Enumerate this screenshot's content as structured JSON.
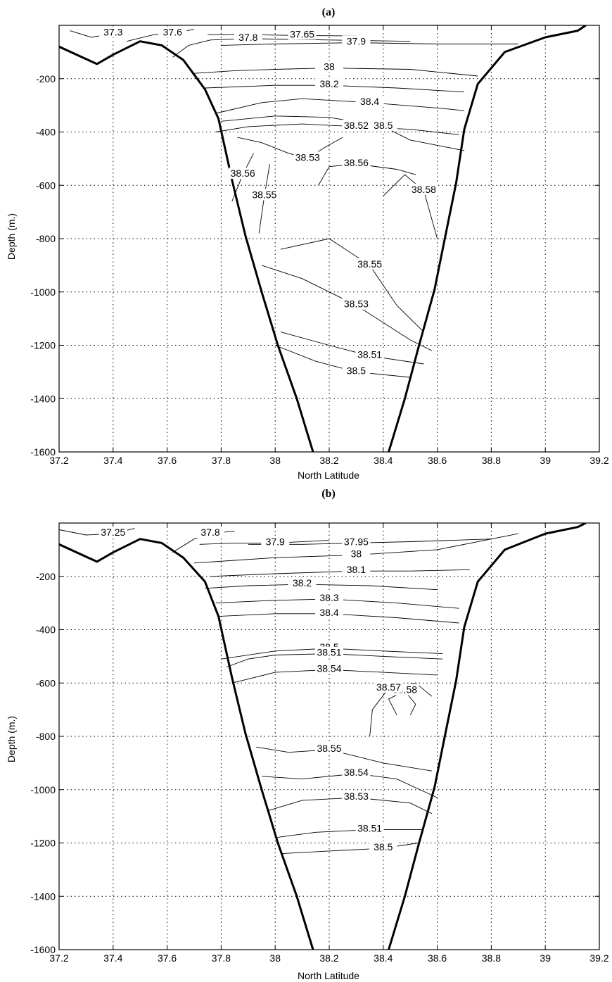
{
  "chart_data": [
    {
      "type": "contour",
      "title": "(a)",
      "xlabel": "North Latitude",
      "ylabel": "Depth (m.)",
      "xlim": [
        37.2,
        39.2
      ],
      "ylim": [
        -1600,
        0
      ],
      "xticks": [
        "37.2",
        "37.4",
        "37.6",
        "37.8",
        "38",
        "38.2",
        "38.4",
        "38.6",
        "38.8",
        "39",
        "39.2"
      ],
      "yticks": [
        "-200",
        "-400",
        "-600",
        "-800",
        "-1000",
        "-1200",
        "-1400",
        "-1600"
      ],
      "grid": true,
      "bathymetry": [
        [
          37.2,
          -80
        ],
        [
          37.34,
          -145
        ],
        [
          37.4,
          -110
        ],
        [
          37.5,
          -60
        ],
        [
          37.58,
          -75
        ],
        [
          37.66,
          -130
        ],
        [
          37.74,
          -240
        ],
        [
          37.79,
          -350
        ],
        [
          37.84,
          -580
        ],
        [
          37.89,
          -790
        ],
        [
          37.95,
          -1000
        ],
        [
          38.01,
          -1200
        ],
        [
          38.08,
          -1400
        ],
        [
          38.14,
          -1600
        ]
      ],
      "bathymetry_right": [
        [
          38.42,
          -1600
        ],
        [
          38.48,
          -1400
        ],
        [
          38.53,
          -1210
        ],
        [
          38.59,
          -990
        ],
        [
          38.63,
          -790
        ],
        [
          38.67,
          -590
        ],
        [
          38.7,
          -390
        ],
        [
          38.75,
          -220
        ],
        [
          38.85,
          -100
        ],
        [
          39.0,
          -45
        ],
        [
          39.12,
          -20
        ],
        [
          39.15,
          0
        ]
      ],
      "contours": [
        {
          "label": "37.3",
          "points": [
            [
              37.24,
              -20
            ],
            [
              37.32,
              -45
            ],
            [
              37.4,
              -30
            ],
            [
              37.45,
              -10
            ]
          ]
        },
        {
          "label": "37.6",
          "points": [
            [
              37.45,
              -60
            ],
            [
              37.55,
              -35
            ],
            [
              37.62,
              -30
            ],
            [
              37.7,
              -15
            ]
          ]
        },
        {
          "label": "37.65",
          "points": [
            [
              37.75,
              -35
            ],
            [
              37.9,
              -35
            ],
            [
              38.1,
              -38
            ],
            [
              38.3,
              -40
            ]
          ]
        },
        {
          "label": "37.8",
          "points": [
            [
              37.62,
              -120
            ],
            [
              37.68,
              -75
            ],
            [
              37.76,
              -55
            ],
            [
              37.9,
              -50
            ],
            [
              38.2,
              -55
            ],
            [
              38.5,
              -60
            ]
          ]
        },
        {
          "label": "37.9",
          "points": [
            [
              37.8,
              -75
            ],
            [
              38.0,
              -70
            ],
            [
              38.3,
              -65
            ],
            [
              38.6,
              -70
            ],
            [
              38.9,
              -70
            ]
          ]
        },
        {
          "label": "38",
          "points": [
            [
              37.7,
              -180
            ],
            [
              37.85,
              -170
            ],
            [
              38.0,
              -165
            ],
            [
              38.2,
              -160
            ],
            [
              38.5,
              -165
            ],
            [
              38.75,
              -190
            ]
          ]
        },
        {
          "label": "38.2",
          "points": [
            [
              37.74,
              -235
            ],
            [
              38.0,
              -225
            ],
            [
              38.2,
              -225
            ],
            [
              38.45,
              -235
            ],
            [
              38.7,
              -250
            ]
          ]
        },
        {
          "label": "38.4",
          "points": [
            [
              37.78,
              -330
            ],
            [
              37.95,
              -290
            ],
            [
              38.1,
              -275
            ],
            [
              38.35,
              -290
            ],
            [
              38.6,
              -310
            ],
            [
              38.7,
              -320
            ]
          ]
        },
        {
          "label": "38.52",
          "points": [
            [
              37.78,
              -400
            ],
            [
              37.9,
              -380
            ],
            [
              38.1,
              -370
            ],
            [
              38.3,
              -380
            ],
            [
              38.5,
              -390
            ],
            [
              38.68,
              -410
            ]
          ]
        },
        {
          "label": "38.5",
          "points": [
            [
              37.8,
              -360
            ],
            [
              38.0,
              -340
            ],
            [
              38.2,
              -345
            ],
            [
              38.4,
              -380
            ],
            [
              38.5,
              -430
            ],
            [
              38.7,
              -470
            ]
          ]
        },
        {
          "label": "38.53",
          "points": [
            [
              37.86,
              -420
            ],
            [
              37.95,
              -440
            ],
            [
              38.05,
              -480
            ],
            [
              38.12,
              -500
            ],
            [
              38.18,
              -460
            ],
            [
              38.25,
              -420
            ]
          ]
        },
        {
          "label": "38.56",
          "points": [
            [
              37.92,
              -480
            ],
            [
              37.88,
              -560
            ],
            [
              37.84,
              -660
            ]
          ]
        },
        {
          "label": "38.55",
          "points": [
            [
              37.98,
              -520
            ],
            [
              37.96,
              -640
            ],
            [
              37.94,
              -780
            ]
          ]
        },
        {
          "label": "38.56",
          "points": [
            [
              38.16,
              -600
            ],
            [
              38.2,
              -530
            ],
            [
              38.3,
              -520
            ],
            [
              38.45,
              -540
            ],
            [
              38.52,
              -560
            ]
          ]
        },
        {
          "label": "38.58",
          "points": [
            [
              38.4,
              -640
            ],
            [
              38.48,
              -560
            ],
            [
              38.55,
              -620
            ],
            [
              38.6,
              -800
            ]
          ]
        },
        {
          "label": "38.55",
          "points": [
            [
              38.02,
              -840
            ],
            [
              38.2,
              -800
            ],
            [
              38.35,
              -900
            ],
            [
              38.45,
              -1050
            ],
            [
              38.55,
              -1150
            ]
          ]
        },
        {
          "label": "38.53",
          "points": [
            [
              37.95,
              -900
            ],
            [
              38.1,
              -950
            ],
            [
              38.3,
              -1050
            ],
            [
              38.5,
              -1180
            ],
            [
              38.58,
              -1220
            ]
          ]
        },
        {
          "label": "38.5",
          "points": [
            [
              38.0,
              -1200
            ],
            [
              38.15,
              -1260
            ],
            [
              38.3,
              -1300
            ],
            [
              38.5,
              -1320
            ]
          ]
        },
        {
          "label": "38.51",
          "points": [
            [
              38.02,
              -1150
            ],
            [
              38.2,
              -1200
            ],
            [
              38.35,
              -1240
            ],
            [
              38.55,
              -1270
            ]
          ]
        }
      ]
    },
    {
      "type": "contour",
      "title": "(b)",
      "xlabel": "North Latitude",
      "ylabel": "Depth (m.)",
      "xlim": [
        37.2,
        39.2
      ],
      "ylim": [
        -1600,
        0
      ],
      "xticks": [
        "37.2",
        "37.4",
        "37.6",
        "37.8",
        "38",
        "38.2",
        "38.4",
        "38.6",
        "38.8",
        "39",
        "39.2"
      ],
      "yticks": [
        "-200",
        "-400",
        "-600",
        "-800",
        "-1000",
        "-1200",
        "-1400",
        "-1600"
      ],
      "grid": true,
      "bathymetry": [
        [
          37.2,
          -80
        ],
        [
          37.34,
          -145
        ],
        [
          37.4,
          -110
        ],
        [
          37.5,
          -60
        ],
        [
          37.58,
          -75
        ],
        [
          37.66,
          -130
        ],
        [
          37.74,
          -220
        ],
        [
          37.79,
          -350
        ],
        [
          37.84,
          -580
        ],
        [
          37.89,
          -790
        ],
        [
          37.95,
          -1000
        ],
        [
          38.01,
          -1200
        ],
        [
          38.08,
          -1400
        ],
        [
          38.14,
          -1600
        ]
      ],
      "bathymetry_right": [
        [
          38.42,
          -1600
        ],
        [
          38.48,
          -1400
        ],
        [
          38.53,
          -1210
        ],
        [
          38.59,
          -990
        ],
        [
          38.63,
          -790
        ],
        [
          38.67,
          -590
        ],
        [
          38.7,
          -390
        ],
        [
          38.75,
          -220
        ],
        [
          38.85,
          -100
        ],
        [
          39.0,
          -40
        ],
        [
          39.12,
          -15
        ],
        [
          39.15,
          0
        ]
      ],
      "contours": [
        {
          "label": "37.25",
          "points": [
            [
              37.2,
              -25
            ],
            [
              37.3,
              -45
            ],
            [
              37.4,
              -40
            ],
            [
              37.48,
              -20
            ]
          ]
        },
        {
          "label": "37.8",
          "points": [
            [
              37.62,
              -110
            ],
            [
              37.7,
              -60
            ],
            [
              37.76,
              -40
            ],
            [
              37.85,
              -30
            ]
          ]
        },
        {
          "label": "37.9",
          "points": [
            [
              37.72,
              -80
            ],
            [
              37.85,
              -75
            ],
            [
              38.0,
              -75
            ],
            [
              38.2,
              -65
            ]
          ]
        },
        {
          "label": "37.95",
          "points": [
            [
              37.9,
              -80
            ],
            [
              38.1,
              -80
            ],
            [
              38.3,
              -75
            ],
            [
              38.5,
              -70
            ],
            [
              38.8,
              -60
            ]
          ]
        },
        {
          "label": "38",
          "points": [
            [
              37.7,
              -150
            ],
            [
              37.85,
              -140
            ],
            [
              38.0,
              -130
            ],
            [
              38.3,
              -120
            ],
            [
              38.6,
              -100
            ],
            [
              38.9,
              -40
            ]
          ]
        },
        {
          "label": "38.1",
          "points": [
            [
              37.76,
              -200
            ],
            [
              38.0,
              -190
            ],
            [
              38.3,
              -180
            ],
            [
              38.5,
              -180
            ],
            [
              38.72,
              -175
            ]
          ]
        },
        {
          "label": "38.2",
          "points": [
            [
              37.74,
              -245
            ],
            [
              37.9,
              -235
            ],
            [
              38.1,
              -230
            ],
            [
              38.35,
              -235
            ],
            [
              38.6,
              -250
            ]
          ]
        },
        {
          "label": "38.3",
          "points": [
            [
              37.78,
              -300
            ],
            [
              38.0,
              -290
            ],
            [
              38.2,
              -285
            ],
            [
              38.45,
              -300
            ],
            [
              38.68,
              -320
            ]
          ]
        },
        {
          "label": "38.4",
          "points": [
            [
              37.79,
              -350
            ],
            [
              38.0,
              -340
            ],
            [
              38.2,
              -340
            ],
            [
              38.45,
              -355
            ],
            [
              38.68,
              -375
            ]
          ]
        },
        {
          "label": "38.5",
          "points": [
            [
              37.8,
              -510
            ],
            [
              38.0,
              -480
            ],
            [
              38.2,
              -470
            ],
            [
              38.4,
              -480
            ],
            [
              38.62,
              -490
            ]
          ]
        },
        {
          "label": "38.51",
          "points": [
            [
              37.82,
              -540
            ],
            [
              37.9,
              -510
            ],
            [
              38.0,
              -495
            ],
            [
              38.2,
              -490
            ],
            [
              38.4,
              -500
            ],
            [
              38.62,
              -510
            ]
          ]
        },
        {
          "label": "38.54",
          "points": [
            [
              37.84,
              -600
            ],
            [
              38.0,
              -560
            ],
            [
              38.2,
              -550
            ],
            [
              38.4,
              -560
            ],
            [
              38.6,
              -570
            ]
          ]
        },
        {
          "label": "38.58",
          "points": [
            [
              38.45,
              -720
            ],
            [
              38.42,
              -660
            ],
            [
              38.48,
              -630
            ],
            [
              38.52,
              -680
            ],
            [
              38.5,
              -720
            ]
          ]
        },
        {
          "label": "38.57",
          "points": [
            [
              38.35,
              -800
            ],
            [
              38.36,
              -700
            ],
            [
              38.42,
              -620
            ],
            [
              38.52,
              -600
            ],
            [
              38.58,
              -650
            ]
          ]
        },
        {
          "label": "38.55",
          "points": [
            [
              37.93,
              -840
            ],
            [
              38.05,
              -860
            ],
            [
              38.2,
              -850
            ],
            [
              38.4,
              -900
            ],
            [
              38.58,
              -930
            ]
          ]
        },
        {
          "label": "38.54",
          "points": [
            [
              37.95,
              -950
            ],
            [
              38.1,
              -960
            ],
            [
              38.3,
              -940
            ],
            [
              38.45,
              -960
            ],
            [
              38.6,
              -1030
            ]
          ]
        },
        {
          "label": "38.53",
          "points": [
            [
              37.97,
              -1080
            ],
            [
              38.1,
              -1040
            ],
            [
              38.3,
              -1030
            ],
            [
              38.5,
              -1050
            ],
            [
              38.58,
              -1090
            ]
          ]
        },
        {
          "label": "38.51",
          "points": [
            [
              38.0,
              -1180
            ],
            [
              38.15,
              -1160
            ],
            [
              38.35,
              -1150
            ],
            [
              38.55,
              -1150
            ]
          ]
        },
        {
          "label": "38.5",
          "points": [
            [
              38.02,
              -1240
            ],
            [
              38.2,
              -1230
            ],
            [
              38.4,
              -1220
            ],
            [
              38.53,
              -1200
            ]
          ]
        }
      ]
    }
  ]
}
